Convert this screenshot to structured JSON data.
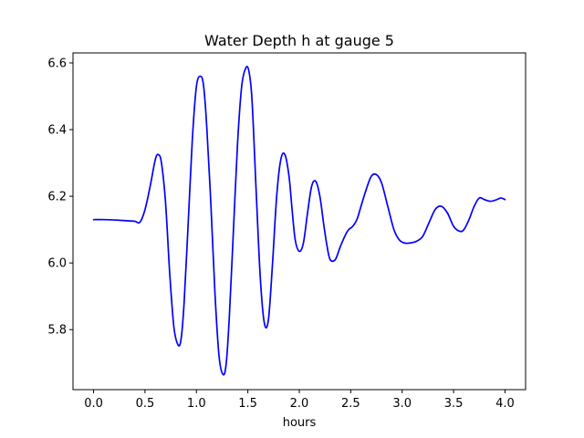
{
  "chart_data": {
    "type": "line",
    "title": "Water Depth h at gauge 5",
    "xlabel": "hours",
    "ylabel": "",
    "xlim": [
      -0.2,
      4.2
    ],
    "ylim": [
      5.62,
      6.63
    ],
    "xticks": [
      0.0,
      0.5,
      1.0,
      1.5,
      2.0,
      2.5,
      3.0,
      3.5,
      4.0
    ],
    "xtick_labels": [
      "0.0",
      "0.5",
      "1.0",
      "1.5",
      "2.0",
      "2.5",
      "3.0",
      "3.5",
      "4.0"
    ],
    "yticks": [
      5.8,
      6.0,
      6.2,
      6.4,
      6.6
    ],
    "ytick_labels": [
      "5.8",
      "6.0",
      "6.2",
      "6.4",
      "6.6"
    ],
    "grid": false,
    "legend": "none",
    "series": [
      {
        "color": "#0000ff",
        "x": [
          0.0,
          0.1,
          0.2,
          0.3,
          0.4,
          0.45,
          0.5,
          0.55,
          0.6,
          0.63,
          0.66,
          0.7,
          0.74,
          0.78,
          0.82,
          0.85,
          0.88,
          0.92,
          0.96,
          1.0,
          1.04,
          1.07,
          1.1,
          1.14,
          1.18,
          1.22,
          1.26,
          1.29,
          1.32,
          1.36,
          1.4,
          1.44,
          1.48,
          1.51,
          1.54,
          1.58,
          1.62,
          1.66,
          1.7,
          1.74,
          1.78,
          1.82,
          1.86,
          1.9,
          1.93,
          1.96,
          2.0,
          2.04,
          2.08,
          2.12,
          2.16,
          2.2,
          2.24,
          2.27,
          2.3,
          2.35,
          2.4,
          2.45,
          2.48,
          2.52,
          2.56,
          2.6,
          2.65,
          2.7,
          2.75,
          2.8,
          2.86,
          2.92,
          2.97,
          3.02,
          3.08,
          3.14,
          3.2,
          3.26,
          3.32,
          3.38,
          3.44,
          3.5,
          3.56,
          3.6,
          3.65,
          3.7,
          3.75,
          3.8,
          3.86,
          3.92,
          3.96,
          4.0
        ],
        "y": [
          6.13,
          6.13,
          6.129,
          6.127,
          6.125,
          6.122,
          6.16,
          6.23,
          6.31,
          6.325,
          6.3,
          6.18,
          5.97,
          5.81,
          5.755,
          5.77,
          5.88,
          6.12,
          6.37,
          6.53,
          6.56,
          6.53,
          6.41,
          6.18,
          5.91,
          5.72,
          5.665,
          5.7,
          5.84,
          6.1,
          6.36,
          6.53,
          6.585,
          6.575,
          6.49,
          6.22,
          5.96,
          5.82,
          5.83,
          6.0,
          6.2,
          6.31,
          6.325,
          6.26,
          6.16,
          6.07,
          6.035,
          6.06,
          6.15,
          6.23,
          6.245,
          6.2,
          6.11,
          6.05,
          6.01,
          6.01,
          6.05,
          6.085,
          6.1,
          6.11,
          6.13,
          6.17,
          6.22,
          6.26,
          6.265,
          6.24,
          6.17,
          6.1,
          6.07,
          6.06,
          6.06,
          6.065,
          6.08,
          6.12,
          6.16,
          6.17,
          6.15,
          6.11,
          6.095,
          6.1,
          6.13,
          6.17,
          6.195,
          6.19,
          6.185,
          6.19,
          6.195,
          6.19
        ]
      }
    ]
  }
}
